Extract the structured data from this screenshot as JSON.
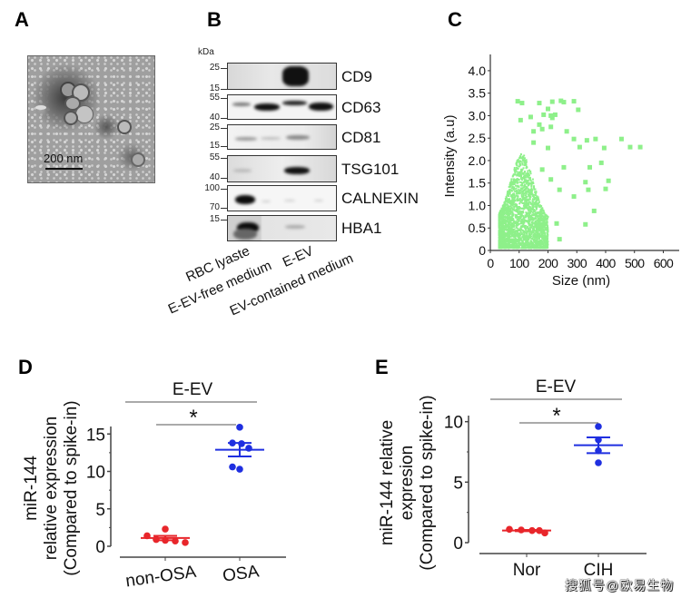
{
  "panels": {
    "A": {
      "letter": "A",
      "image_desc": "Transmission electron micrograph of erythrocyte extracellular vesicles",
      "scale_bar": "200 nm"
    },
    "B": {
      "letter": "B",
      "unit_label": "kDa",
      "blots": [
        {
          "protein": "CD9",
          "markers": [
            "25",
            "15"
          ]
        },
        {
          "protein": "CD63",
          "markers": [
            "55",
            "40"
          ]
        },
        {
          "protein": "CD81",
          "markers": [
            "25",
            "15"
          ]
        },
        {
          "protein": "TSG101",
          "markers": [
            "55",
            "40"
          ]
        },
        {
          "protein": "CALNEXIN",
          "markers": [
            "100",
            "70"
          ]
        },
        {
          "protein": "HBA1",
          "markers": [
            "15"
          ]
        }
      ],
      "lanes": [
        "RBC lyaste",
        "E-EV-free medium",
        "E-EV",
        "EV-contained medium"
      ]
    },
    "C": {
      "letter": "C"
    },
    "D": {
      "letter": "D",
      "group_label": "E-EV",
      "significance": "*"
    },
    "E": {
      "letter": "E",
      "group_label": "E-EV",
      "significance": "*"
    }
  },
  "watermark": "搜狐号@欧易生物",
  "colors": {
    "scatter_green": "#8ef08a",
    "control_red": "#e8262b",
    "treatment_blue": "#1f2fe0",
    "axis": "#444444",
    "bracket": "#777777"
  },
  "chart_data": [
    {
      "id": "C",
      "type": "scatter",
      "title": "",
      "xlabel": "Size (nm)",
      "ylabel": "Intensity (a.u)",
      "xlim": [
        0,
        630
      ],
      "ylim": [
        0,
        4.2
      ],
      "xticks": [
        "0",
        "100",
        "200",
        "300",
        "400",
        "500",
        "600"
      ],
      "yticks": [
        "0",
        "0.5",
        "1.0",
        "1.5",
        "2.0",
        "2.5",
        "3.0",
        "3.5",
        "4.0"
      ],
      "grid": false,
      "legend": "none",
      "series": [
        {
          "name": "Particles (dense cloud)",
          "description": "Dense cloud of small particles, size ~30-200 nm, intensity 0-2.1 a.u.",
          "cluster_x_range": [
            30,
            200
          ],
          "cluster_y_range": [
            0.05,
            2.1
          ]
        },
        {
          "name": "Particles (sparse large)",
          "points": [
            [
              95,
              3.32
            ],
            [
              110,
              3.28
            ],
            [
              170,
              3.28
            ],
            [
              215,
              3.31
            ],
            [
              245,
              3.33
            ],
            [
              255,
              3.3
            ],
            [
              290,
              3.32
            ],
            [
              305,
              3.13
            ],
            [
              200,
              3.15
            ],
            [
              185,
              3.02
            ],
            [
              210,
              3.0
            ],
            [
              225,
              3.02
            ],
            [
              215,
              2.95
            ],
            [
              105,
              2.9
            ],
            [
              140,
              2.97
            ],
            [
              170,
              2.8
            ],
            [
              210,
              2.75
            ],
            [
              265,
              2.65
            ],
            [
              150,
              2.65
            ],
            [
              180,
              2.7
            ],
            [
              290,
              2.48
            ],
            [
              335,
              2.45
            ],
            [
              365,
              2.48
            ],
            [
              455,
              2.48
            ],
            [
              200,
              2.28
            ],
            [
              310,
              2.3
            ],
            [
              395,
              2.28
            ],
            [
              485,
              2.3
            ],
            [
              520,
              2.3
            ],
            [
              385,
              1.95
            ],
            [
              345,
              1.85
            ],
            [
              410,
              1.55
            ],
            [
              330,
              1.52
            ],
            [
              340,
              1.35
            ],
            [
              400,
              1.37
            ],
            [
              290,
              1.2
            ],
            [
              240,
              1.35
            ],
            [
              360,
              0.88
            ],
            [
              330,
              0.58
            ],
            [
              230,
              0.6
            ],
            [
              240,
              0.25
            ],
            [
              180,
              1.8
            ],
            [
              255,
              1.85
            ],
            [
              210,
              1.58
            ],
            [
              150,
              2.4
            ]
          ]
        }
      ]
    },
    {
      "id": "D",
      "type": "scatter",
      "title": "E-EV",
      "xlabel": "",
      "ylabel": "miR-144 relative expression (Compared to spike-in)",
      "ylabel_lines": [
        "miR-144",
        "relative expression",
        "(Compared to spike-in)"
      ],
      "categories": [
        "non-OSA",
        "OSA"
      ],
      "ylim": [
        0,
        16
      ],
      "yticks": [
        "0",
        "5",
        "10",
        "15"
      ],
      "grid": false,
      "series": [
        {
          "name": "non-OSA",
          "color": "#e8262b",
          "values": [
            1.4,
            0.9,
            2.3,
            0.8,
            0.7,
            0.5
          ],
          "mean": 1.1,
          "sem_low": 0.8,
          "sem_high": 1.4
        },
        {
          "name": "OSA",
          "color": "#1f2fe0",
          "values": [
            15.9,
            13.8,
            13.7,
            13.1,
            10.6,
            10.3
          ],
          "mean": 12.9,
          "sem_low": 12.0,
          "sem_high": 13.8
        }
      ],
      "annotation": "*"
    },
    {
      "id": "E",
      "type": "scatter",
      "title": "E-EV",
      "xlabel": "",
      "ylabel": "miR-144 relative expression (Compared to spike-in)",
      "ylabel_lines": [
        "miR-144 relative",
        "expresion",
        "(Compared to spike-in)"
      ],
      "categories": [
        "Nor",
        "CIH"
      ],
      "ylim": [
        0,
        10.5
      ],
      "yticks": [
        "0",
        "5",
        "10"
      ],
      "grid": false,
      "series": [
        {
          "name": "Nor",
          "color": "#e8262b",
          "values": [
            1.1,
            1.05,
            1.0,
            1.0,
            0.8
          ],
          "mean": 1.0,
          "sem_low": 0.95,
          "sem_high": 1.05
        },
        {
          "name": "CIH",
          "color": "#1f2fe0",
          "values": [
            9.6,
            8.5,
            7.6,
            6.6
          ],
          "mean": 8.05,
          "sem_low": 7.4,
          "sem_high": 8.7
        }
      ],
      "annotation": "*"
    }
  ]
}
